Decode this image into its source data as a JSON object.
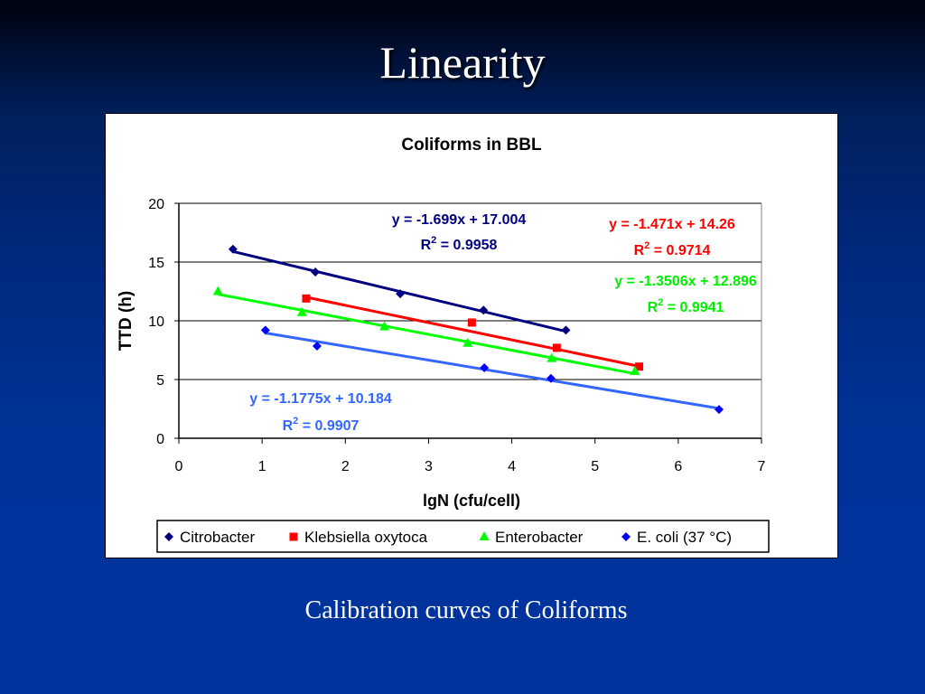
{
  "slide": {
    "title": "Linearity",
    "caption": "Calibration curves of Coliforms"
  },
  "chart_data": {
    "type": "scatter",
    "title": "Coliforms in BBL",
    "xlabel": "lgN (cfu/cell)",
    "ylabel": "TTD (h)",
    "xlim": [
      0,
      7
    ],
    "ylim": [
      0,
      20
    ],
    "x_ticks": [
      0,
      1,
      2,
      3,
      4,
      5,
      6,
      7
    ],
    "y_ticks": [
      0,
      5,
      10,
      15,
      20
    ],
    "grid": "horizontal major gridlines",
    "legend_position": "bottom",
    "series": [
      {
        "name": "Citrobacter",
        "color": "#000080",
        "marker": "diamond",
        "x": [
          0.65,
          1.64,
          2.66,
          3.66,
          4.65
        ],
        "y": [
          16.1,
          14.15,
          12.3,
          10.9,
          9.2
        ],
        "trendline": {
          "slope": -1.699,
          "intercept": 17.004,
          "r2": 0.9958,
          "equation": "y = -1.699x + 17.004",
          "r2_label": "R2 = 0.9958"
        }
      },
      {
        "name": "Klebsiella oxytoca",
        "color": "#ff0000",
        "marker": "square",
        "x": [
          1.53,
          3.52,
          4.54,
          5.53
        ],
        "y": [
          11.9,
          9.85,
          7.7,
          6.1
        ],
        "trendline": {
          "slope": -1.471,
          "intercept": 14.26,
          "r2": 0.9714,
          "equation": "y = -1.471x + 14.26",
          "r2_label": "R2 = 0.9714"
        }
      },
      {
        "name": "Enterobacter",
        "color": "#00ff00",
        "marker": "triangle",
        "x": [
          0.47,
          1.48,
          2.47,
          3.47,
          4.48,
          5.48
        ],
        "y": [
          12.5,
          10.7,
          9.5,
          8.1,
          6.8,
          5.7
        ],
        "trendline": {
          "slope": -1.3506,
          "intercept": 12.896,
          "r2": 0.9941,
          "equation": "y = -1.3506x + 12.896",
          "r2_label": "R2 = 0.9941"
        }
      },
      {
        "name": "E. coli (37 °C)",
        "color": "#0000ff",
        "trend_color": "#3366ff",
        "marker": "diamond",
        "x": [
          1.04,
          1.66,
          3.67,
          4.47,
          6.49
        ],
        "y": [
          9.2,
          7.85,
          6.0,
          5.1,
          2.45
        ],
        "trendline": {
          "slope": -1.1775,
          "intercept": 10.184,
          "r2": 0.9907,
          "equation": "y = -1.1775x + 10.184",
          "r2_label": "R2 = 0.9907"
        }
      }
    ]
  }
}
